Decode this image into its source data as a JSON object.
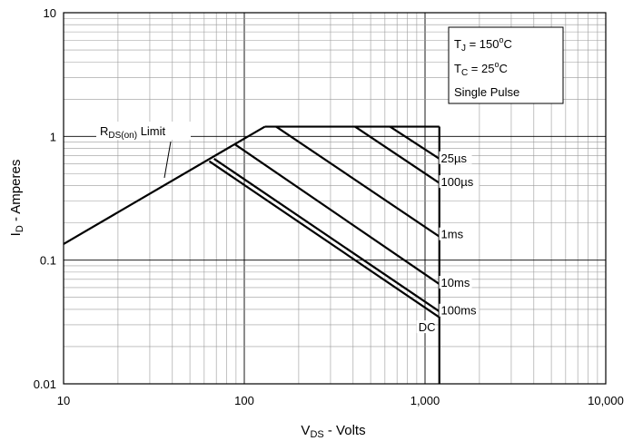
{
  "chart_data": {
    "type": "line",
    "xscale": "log",
    "yscale": "log",
    "xlim": [
      10,
      10000
    ],
    "ylim": [
      0.01,
      10
    ],
    "grid": true,
    "xlabel": {
      "main": "V",
      "sub": "DS",
      "rest": " - Volts"
    },
    "ylabel": {
      "main": "I",
      "sub": "D",
      "rest": " - Amperes"
    },
    "x_ticks": [
      {
        "value": 10,
        "label": "10"
      },
      {
        "value": 100,
        "label": "100"
      },
      {
        "value": 1000,
        "label": "1,000"
      },
      {
        "value": 10000,
        "label": "10,000"
      }
    ],
    "y_ticks": [
      {
        "value": 10,
        "label": "10"
      },
      {
        "value": 1,
        "label": "1"
      },
      {
        "value": 0.1,
        "label": "0.1"
      },
      {
        "value": 0.01,
        "label": "0.01"
      }
    ],
    "conditions": {
      "tj": {
        "main": "T",
        "sub": "J",
        "rest": " = 150",
        "sup": "o",
        "unit": "C"
      },
      "tc": {
        "main": "T",
        "sub": "C",
        "rest": " = 25",
        "sup": "o",
        "unit": "C"
      },
      "pulse": "Single Pulse"
    },
    "rds_label": {
      "main": "R",
      "sub": "DS(on)",
      "rest": " Limit"
    },
    "rds_limit": {
      "points": [
        [
          10,
          0.135
        ],
        [
          130,
          1.2
        ]
      ]
    },
    "current_limit": {
      "points": [
        [
          130,
          1.2
        ],
        [
          1200,
          1.2
        ]
      ]
    },
    "voltage_limit": {
      "points": [
        [
          1200,
          1.2
        ],
        [
          1200,
          0.01
        ]
      ]
    },
    "series": [
      {
        "name": "25µs",
        "points": [
          [
            640,
            1.2
          ],
          [
            1200,
            0.66
          ]
        ],
        "label_at": [
          1225,
          0.64
        ]
      },
      {
        "name": "100µs",
        "points": [
          [
            410,
            1.2
          ],
          [
            1200,
            0.42
          ]
        ],
        "label_at": [
          1225,
          0.41
        ]
      },
      {
        "name": "1ms",
        "points": [
          [
            150,
            1.2
          ],
          [
            1200,
            0.155
          ]
        ],
        "label_at": [
          1225,
          0.155
        ]
      },
      {
        "name": "10ms",
        "points": [
          [
            88,
            0.87
          ],
          [
            1200,
            0.064
          ]
        ],
        "label_at": [
          1225,
          0.063
        ]
      },
      {
        "name": "100ms",
        "points": [
          [
            68,
            0.66
          ],
          [
            1200,
            0.0385
          ]
        ],
        "label_at": [
          1225,
          0.0375
        ]
      },
      {
        "name": "DC",
        "points": [
          [
            64,
            0.63
          ],
          [
            1200,
            0.0345
          ]
        ],
        "label_at": [
          920,
          0.0275
        ]
      }
    ]
  }
}
